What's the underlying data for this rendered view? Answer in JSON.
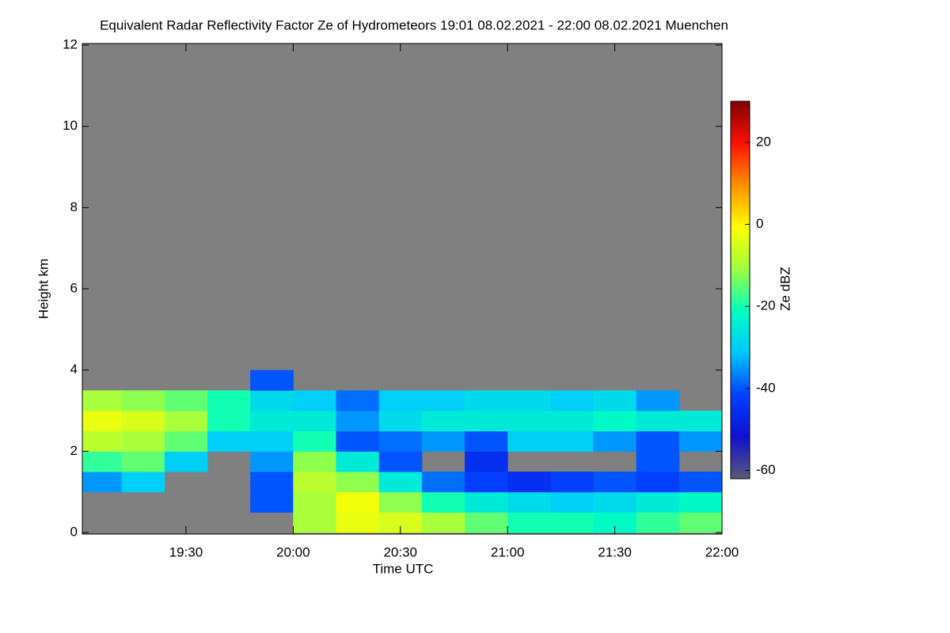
{
  "chart_data": {
    "type": "heatmap",
    "title": "Equivalent Radar Reflectivity Factor Ze of Hydrometeors   19:01 08.02.2021 - 22:00 08.02.2021 Muenchen",
    "xlabel": "Time UTC",
    "ylabel": "Height km",
    "colorbar_label": "Ze dBZ",
    "xlim": [
      19.0167,
      22.0
    ],
    "xticks": [
      {
        "value": 19.5,
        "label": "19:30"
      },
      {
        "value": 20.0,
        "label": "20:00"
      },
      {
        "value": 20.5,
        "label": "20:30"
      },
      {
        "value": 21.0,
        "label": "21:00"
      },
      {
        "value": 21.5,
        "label": "21:30"
      },
      {
        "value": 22.0,
        "label": "22:00"
      }
    ],
    "ylim": [
      0,
      12
    ],
    "yticks": [
      0,
      2,
      4,
      6,
      8,
      10,
      12
    ],
    "zlim": [
      -62,
      30
    ],
    "zticks": [
      -60,
      -40,
      -20,
      0,
      20
    ],
    "colormap": [
      "#5a5a78",
      "#1010d0",
      "#0040ff",
      "#00c8ff",
      "#00ffc0",
      "#a0ff40",
      "#ffff00",
      "#ff9000",
      "#ff1000",
      "#800000"
    ],
    "background": "#808080",
    "x": [
      19.1,
      19.3,
      19.5,
      19.7,
      19.9,
      20.1,
      20.3,
      20.5,
      20.7,
      20.9,
      21.1,
      21.3,
      21.5,
      21.7,
      21.9
    ],
    "y": [
      0.25,
      0.75,
      1.25,
      1.75,
      2.25,
      2.75,
      3.25,
      3.75
    ],
    "z": [
      [
        null,
        null,
        null,
        null,
        null,
        -10,
        -3,
        -5,
        -10,
        -15,
        -20,
        -20,
        -22,
        -18,
        -15
      ],
      [
        null,
        null,
        null,
        null,
        -40,
        -10,
        -2,
        -12,
        -20,
        -25,
        -28,
        -30,
        -28,
        -25,
        -22
      ],
      [
        -35,
        -30,
        null,
        null,
        -40,
        -8,
        -12,
        -25,
        -38,
        -42,
        -45,
        -42,
        -40,
        -42,
        -40
      ],
      [
        -18,
        -15,
        -30,
        null,
        -35,
        -12,
        -25,
        -40,
        null,
        -45,
        null,
        null,
        null,
        -40,
        null
      ],
      [
        -8,
        -10,
        -15,
        -30,
        -30,
        -20,
        -40,
        -38,
        -35,
        -40,
        -30,
        -30,
        -35,
        -40,
        -35
      ],
      [
        -3,
        -5,
        -10,
        -20,
        -25,
        -25,
        -35,
        -28,
        -25,
        -25,
        -25,
        -25,
        -22,
        -25,
        -25
      ],
      [
        -10,
        -12,
        -15,
        -20,
        -28,
        -30,
        -38,
        -30,
        -30,
        -28,
        -28,
        -30,
        -28,
        -35,
        null
      ],
      [
        null,
        null,
        null,
        null,
        -40,
        null,
        null,
        null,
        null,
        null,
        null,
        null,
        null,
        null,
        null
      ]
    ]
  }
}
